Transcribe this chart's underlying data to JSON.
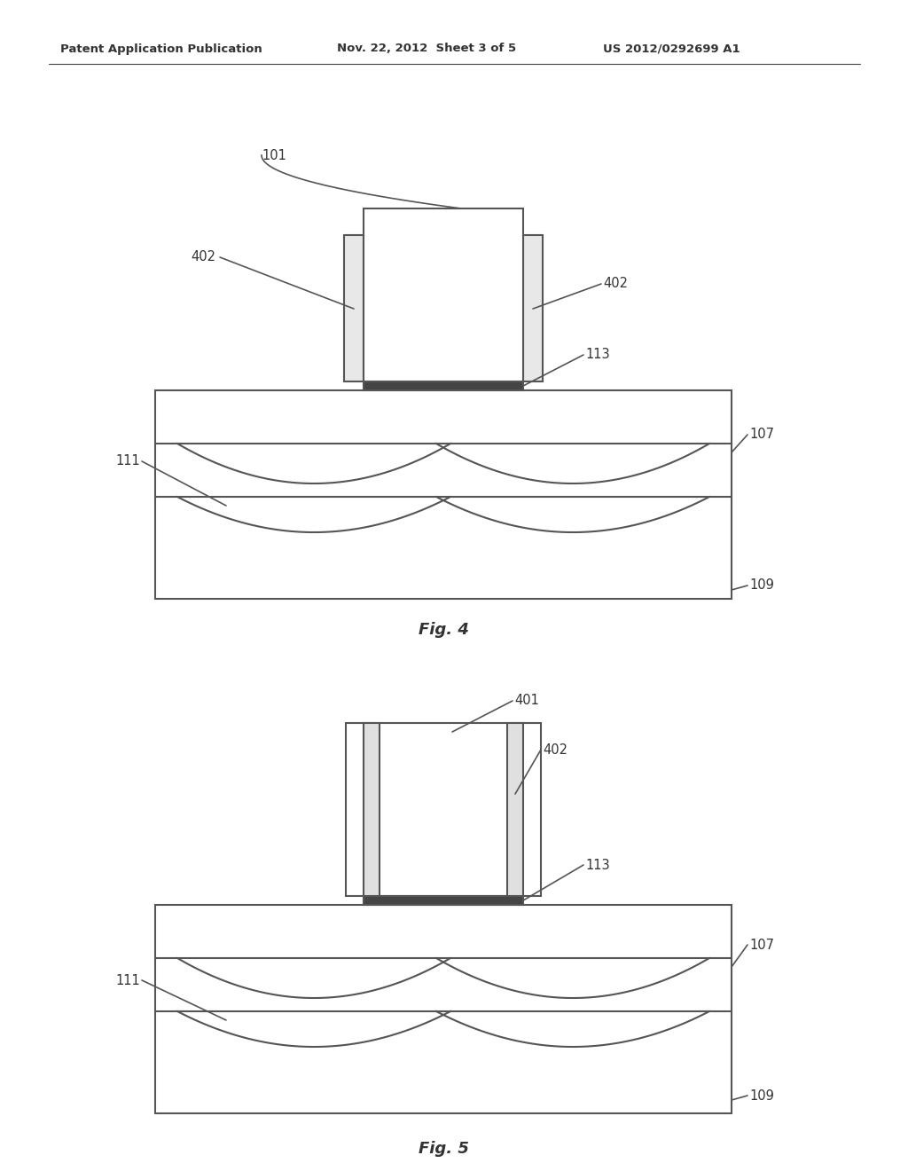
{
  "bg_color": "#ffffff",
  "header_left": "Patent Application Publication",
  "header_mid": "Nov. 22, 2012  Sheet 3 of 5",
  "header_right": "US 2012/0292699 A1",
  "line_color": "#555555",
  "line_width": 1.5,
  "annotation_fontsize": 10.5,
  "header_fontsize": 9.5,
  "figlabel_fontsize": 13,
  "fig4_label": "Fig. 4",
  "fig5_label": "Fig. 5"
}
